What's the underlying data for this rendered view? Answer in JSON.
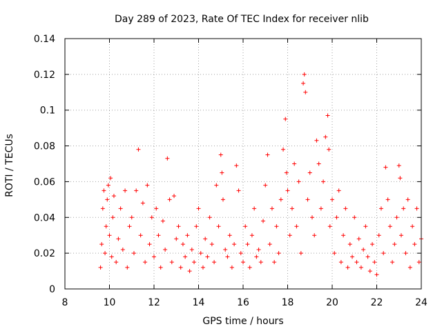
{
  "chart_data": {
    "type": "scatter",
    "title": "Day 289 of 2023, Rate Of TEC Index for receiver nlib",
    "xlabel": "GPS time / hours",
    "ylabel": "ROTI / TECUs",
    "xlim": [
      8,
      24
    ],
    "ylim": [
      0,
      0.14
    ],
    "xticks": [
      8,
      10,
      12,
      14,
      16,
      18,
      20,
      22,
      24
    ],
    "xtick_labels": [
      "8",
      "10",
      "12",
      "14",
      "16",
      "18",
      "20",
      "22",
      "24"
    ],
    "yticks": [
      0,
      0.02,
      0.04,
      0.06,
      0.08,
      0.1,
      0.12,
      0.14
    ],
    "ytick_labels": [
      "0",
      "0.02",
      "0.04",
      "0.06",
      "0.08",
      "0.1",
      "0.12",
      "0.14"
    ],
    "grid": true,
    "marker": "+",
    "marker_color": "#ff0000",
    "series": [
      {
        "name": "ROTI",
        "points": [
          [
            9.6,
            0.012
          ],
          [
            9.65,
            0.025
          ],
          [
            9.7,
            0.045
          ],
          [
            9.75,
            0.055
          ],
          [
            9.8,
            0.02
          ],
          [
            9.85,
            0.035
          ],
          [
            9.9,
            0.05
          ],
          [
            9.95,
            0.058
          ],
          [
            10.0,
            0.03
          ],
          [
            10.05,
            0.062
          ],
          [
            10.1,
            0.018
          ],
          [
            10.15,
            0.04
          ],
          [
            10.2,
            0.052
          ],
          [
            10.3,
            0.015
          ],
          [
            10.4,
            0.028
          ],
          [
            10.5,
            0.045
          ],
          [
            10.6,
            0.022
          ],
          [
            10.7,
            0.055
          ],
          [
            10.8,
            0.012
          ],
          [
            10.9,
            0.035
          ],
          [
            11.0,
            0.04
          ],
          [
            11.1,
            0.02
          ],
          [
            11.2,
            0.055
          ],
          [
            11.3,
            0.078
          ],
          [
            11.4,
            0.03
          ],
          [
            11.5,
            0.048
          ],
          [
            11.6,
            0.015
          ],
          [
            11.7,
            0.058
          ],
          [
            11.8,
            0.025
          ],
          [
            11.9,
            0.04
          ],
          [
            12.0,
            0.018
          ],
          [
            12.1,
            0.045
          ],
          [
            12.2,
            0.03
          ],
          [
            12.3,
            0.012
          ],
          [
            12.4,
            0.038
          ],
          [
            12.5,
            0.022
          ],
          [
            12.6,
            0.073
          ],
          [
            12.7,
            0.05
          ],
          [
            12.8,
            0.015
          ],
          [
            12.9,
            0.052
          ],
          [
            13.0,
            0.028
          ],
          [
            13.1,
            0.035
          ],
          [
            13.2,
            0.012
          ],
          [
            13.3,
            0.025
          ],
          [
            13.4,
            0.018
          ],
          [
            13.5,
            0.03
          ],
          [
            13.6,
            0.01
          ],
          [
            13.7,
            0.022
          ],
          [
            13.8,
            0.015
          ],
          [
            13.9,
            0.035
          ],
          [
            14.0,
            0.045
          ],
          [
            14.1,
            0.02
          ],
          [
            14.2,
            0.012
          ],
          [
            14.3,
            0.028
          ],
          [
            14.4,
            0.018
          ],
          [
            14.5,
            0.04
          ],
          [
            14.6,
            0.025
          ],
          [
            14.7,
            0.015
          ],
          [
            14.8,
            0.058
          ],
          [
            14.9,
            0.035
          ],
          [
            15.0,
            0.075
          ],
          [
            15.05,
            0.065
          ],
          [
            15.1,
            0.05
          ],
          [
            15.2,
            0.022
          ],
          [
            15.3,
            0.018
          ],
          [
            15.4,
            0.03
          ],
          [
            15.5,
            0.012
          ],
          [
            15.6,
            0.025
          ],
          [
            15.7,
            0.069
          ],
          [
            15.8,
            0.055
          ],
          [
            15.9,
            0.02
          ],
          [
            16.0,
            0.015
          ],
          [
            16.1,
            0.035
          ],
          [
            16.2,
            0.025
          ],
          [
            16.3,
            0.012
          ],
          [
            16.4,
            0.03
          ],
          [
            16.5,
            0.045
          ],
          [
            16.6,
            0.018
          ],
          [
            16.7,
            0.022
          ],
          [
            16.8,
            0.015
          ],
          [
            16.9,
            0.038
          ],
          [
            17.0,
            0.058
          ],
          [
            17.1,
            0.075
          ],
          [
            17.2,
            0.025
          ],
          [
            17.3,
            0.045
          ],
          [
            17.4,
            0.015
          ],
          [
            17.5,
            0.035
          ],
          [
            17.6,
            0.02
          ],
          [
            17.7,
            0.05
          ],
          [
            17.8,
            0.078
          ],
          [
            17.9,
            0.095
          ],
          [
            17.95,
            0.065
          ],
          [
            18.0,
            0.055
          ],
          [
            18.1,
            0.03
          ],
          [
            18.2,
            0.045
          ],
          [
            18.3,
            0.07
          ],
          [
            18.4,
            0.035
          ],
          [
            18.5,
            0.06
          ],
          [
            18.6,
            0.02
          ],
          [
            18.7,
            0.115
          ],
          [
            18.75,
            0.12
          ],
          [
            18.8,
            0.11
          ],
          [
            18.9,
            0.05
          ],
          [
            19.0,
            0.065
          ],
          [
            19.1,
            0.04
          ],
          [
            19.2,
            0.03
          ],
          [
            19.3,
            0.083
          ],
          [
            19.4,
            0.07
          ],
          [
            19.5,
            0.045
          ],
          [
            19.6,
            0.06
          ],
          [
            19.7,
            0.085
          ],
          [
            19.8,
            0.097
          ],
          [
            19.85,
            0.078
          ],
          [
            19.9,
            0.035
          ],
          [
            20.0,
            0.05
          ],
          [
            20.1,
            0.02
          ],
          [
            20.2,
            0.04
          ],
          [
            20.3,
            0.055
          ],
          [
            20.4,
            0.015
          ],
          [
            20.5,
            0.03
          ],
          [
            20.6,
            0.045
          ],
          [
            20.7,
            0.012
          ],
          [
            20.8,
            0.025
          ],
          [
            20.9,
            0.018
          ],
          [
            21.0,
            0.04
          ],
          [
            21.1,
            0.015
          ],
          [
            21.2,
            0.028
          ],
          [
            21.3,
            0.012
          ],
          [
            21.4,
            0.022
          ],
          [
            21.5,
            0.035
          ],
          [
            21.6,
            0.018
          ],
          [
            21.7,
            0.01
          ],
          [
            21.8,
            0.025
          ],
          [
            21.9,
            0.015
          ],
          [
            22.0,
            0.008
          ],
          [
            22.1,
            0.03
          ],
          [
            22.2,
            0.045
          ],
          [
            22.3,
            0.02
          ],
          [
            22.4,
            0.068
          ],
          [
            22.5,
            0.05
          ],
          [
            22.6,
            0.035
          ],
          [
            22.7,
            0.015
          ],
          [
            22.8,
            0.025
          ],
          [
            22.9,
            0.04
          ],
          [
            23.0,
            0.069
          ],
          [
            23.05,
            0.062
          ],
          [
            23.1,
            0.03
          ],
          [
            23.2,
            0.045
          ],
          [
            23.3,
            0.02
          ],
          [
            23.4,
            0.05
          ],
          [
            23.5,
            0.012
          ],
          [
            23.6,
            0.035
          ],
          [
            23.7,
            0.025
          ],
          [
            23.8,
            0.045
          ],
          [
            23.9,
            0.015
          ],
          [
            24.0,
            0.028
          ]
        ]
      }
    ]
  }
}
